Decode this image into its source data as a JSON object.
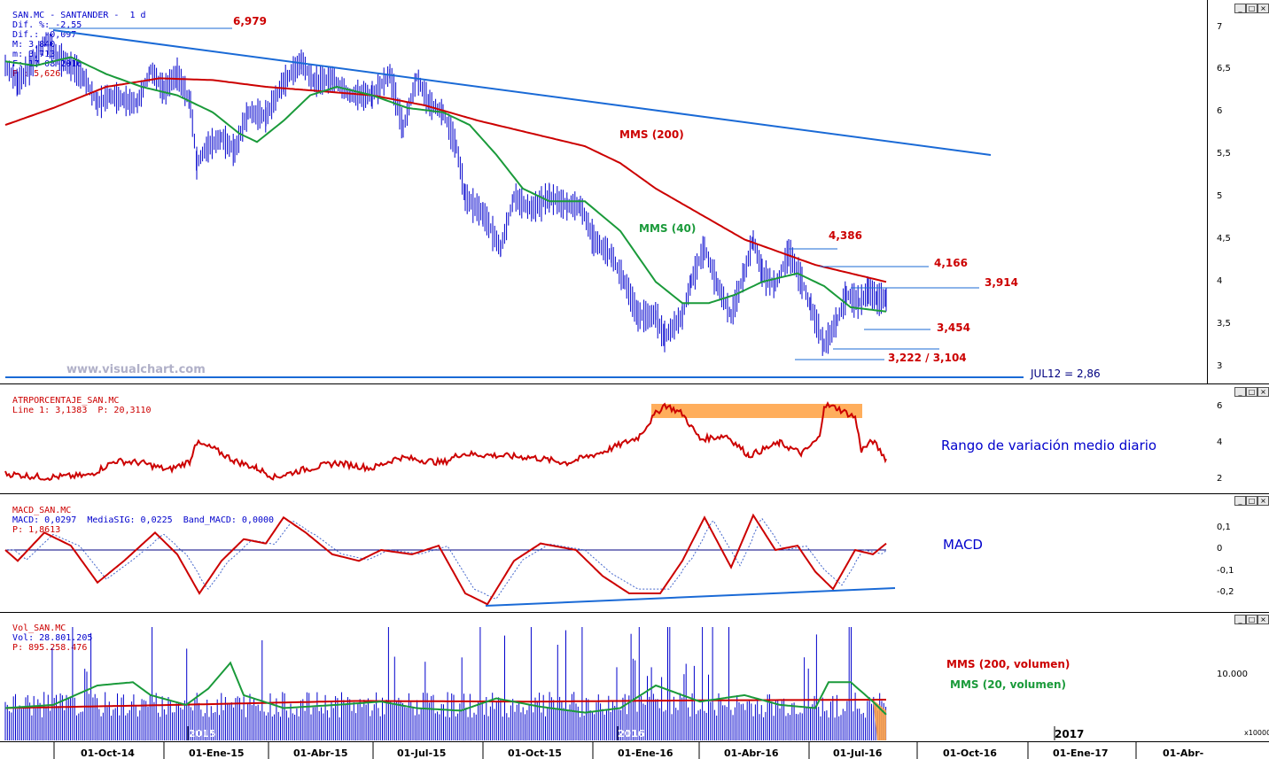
{
  "price_panel": {
    "header": {
      "symbol": "SAN.MC - SANTANDER -  1 d",
      "dif_pct": "Dif. %: -2,55",
      "dif": "Dif.: -0,097",
      "max": "M: 3,840",
      "min": "m: 3,713",
      "date": "F: 17-08-2016",
      "p": "P : 5,626"
    },
    "watermark": "www.visualchart.com",
    "labels": {
      "max_label": "6,979",
      "mms200": "MMS (200)",
      "mms40": "MMS (40)",
      "lvl_4386": "4,386",
      "lvl_4166": "4,166",
      "lvl_3914": "3,914",
      "lvl_3454": "3,454",
      "lvl_3222": "3,222 / 3,104",
      "jul12": "JUL12 = 2,86"
    },
    "y_ticks": [
      "7",
      "6,5",
      "6",
      "5,5",
      "5",
      "4,5",
      "4",
      "3,5",
      "3"
    ]
  },
  "atr_panel": {
    "header_name": "ATRPORCENTAJE_SAN.MC",
    "header_vals": "Line 1: 3,1383  P: 20,3110",
    "label": "Rango de variación medio diario",
    "y_ticks": [
      "6",
      "4",
      "2"
    ]
  },
  "macd_panel": {
    "header_name": "MACD_SAN.MC",
    "header_vals": "MACD: 0,0297  MediaSIG: 0,0225  Band_MACD: 0,0000",
    "header_p": "P: 1,8613",
    "label": "MACD",
    "y_ticks": [
      "0,1",
      "0",
      "-0,1",
      "-0,2"
    ]
  },
  "vol_panel": {
    "header_name": "Vol_SAN.MC",
    "header_vals": "Vol: 28.801.205",
    "header_p": "P: 895.258.476",
    "label_mms200": "MMS (200, volumen)",
    "label_mms20": "MMS (20, volumen)",
    "y_ticks": [
      "10.000"
    ],
    "unit": "x10000",
    "year_marks": [
      "2015",
      "2016",
      "2017"
    ]
  },
  "x_axis": {
    "labels": [
      "01-Oct-14",
      "01-Ene-15",
      "01-Abr-15",
      "01-Jul-15",
      "01-Oct-15",
      "01-Ene-16",
      "01-Abr-16",
      "01-Jul-16",
      "01-Oct-16",
      "01-Ene-17",
      "01-Abr-"
    ]
  },
  "window_buttons": [
    "_",
    "□",
    "×"
  ],
  "colors": {
    "price": "#0000cc",
    "mms200": "#cc0000",
    "mms40": "#1a9a3a",
    "trendline": "#1a6ad6",
    "label_red": "#cc0000",
    "highlight": "#ffa040"
  },
  "chart_data": {
    "type": "line",
    "title": "SAN.MC - SANTANDER - 1 d",
    "x": [
      "01-Oct-14",
      "01-Ene-15",
      "01-Abr-15",
      "01-Jul-15",
      "01-Oct-15",
      "01-Ene-16",
      "01-Abr-16",
      "01-Jul-16"
    ],
    "series": [
      {
        "name": "SAN.MC",
        "values": [
          6.4,
          5.6,
          6.55,
          6.1,
          5.0,
          3.6,
          4.1,
          3.8
        ]
      },
      {
        "name": "MMS (40)",
        "values": [
          6.45,
          5.9,
          6.3,
          6.05,
          5.05,
          3.75,
          4.05,
          3.7
        ]
      },
      {
        "name": "MMS (200)",
        "values": [
          6.0,
          6.3,
          6.3,
          6.1,
          5.7,
          5.1,
          4.4,
          4.05
        ]
      }
    ],
    "levels": [
      6.979,
      4.386,
      4.166,
      3.914,
      3.454,
      3.222,
      3.104,
      2.86
    ],
    "ylim": [
      2.9,
      7.1
    ],
    "grid": false
  }
}
